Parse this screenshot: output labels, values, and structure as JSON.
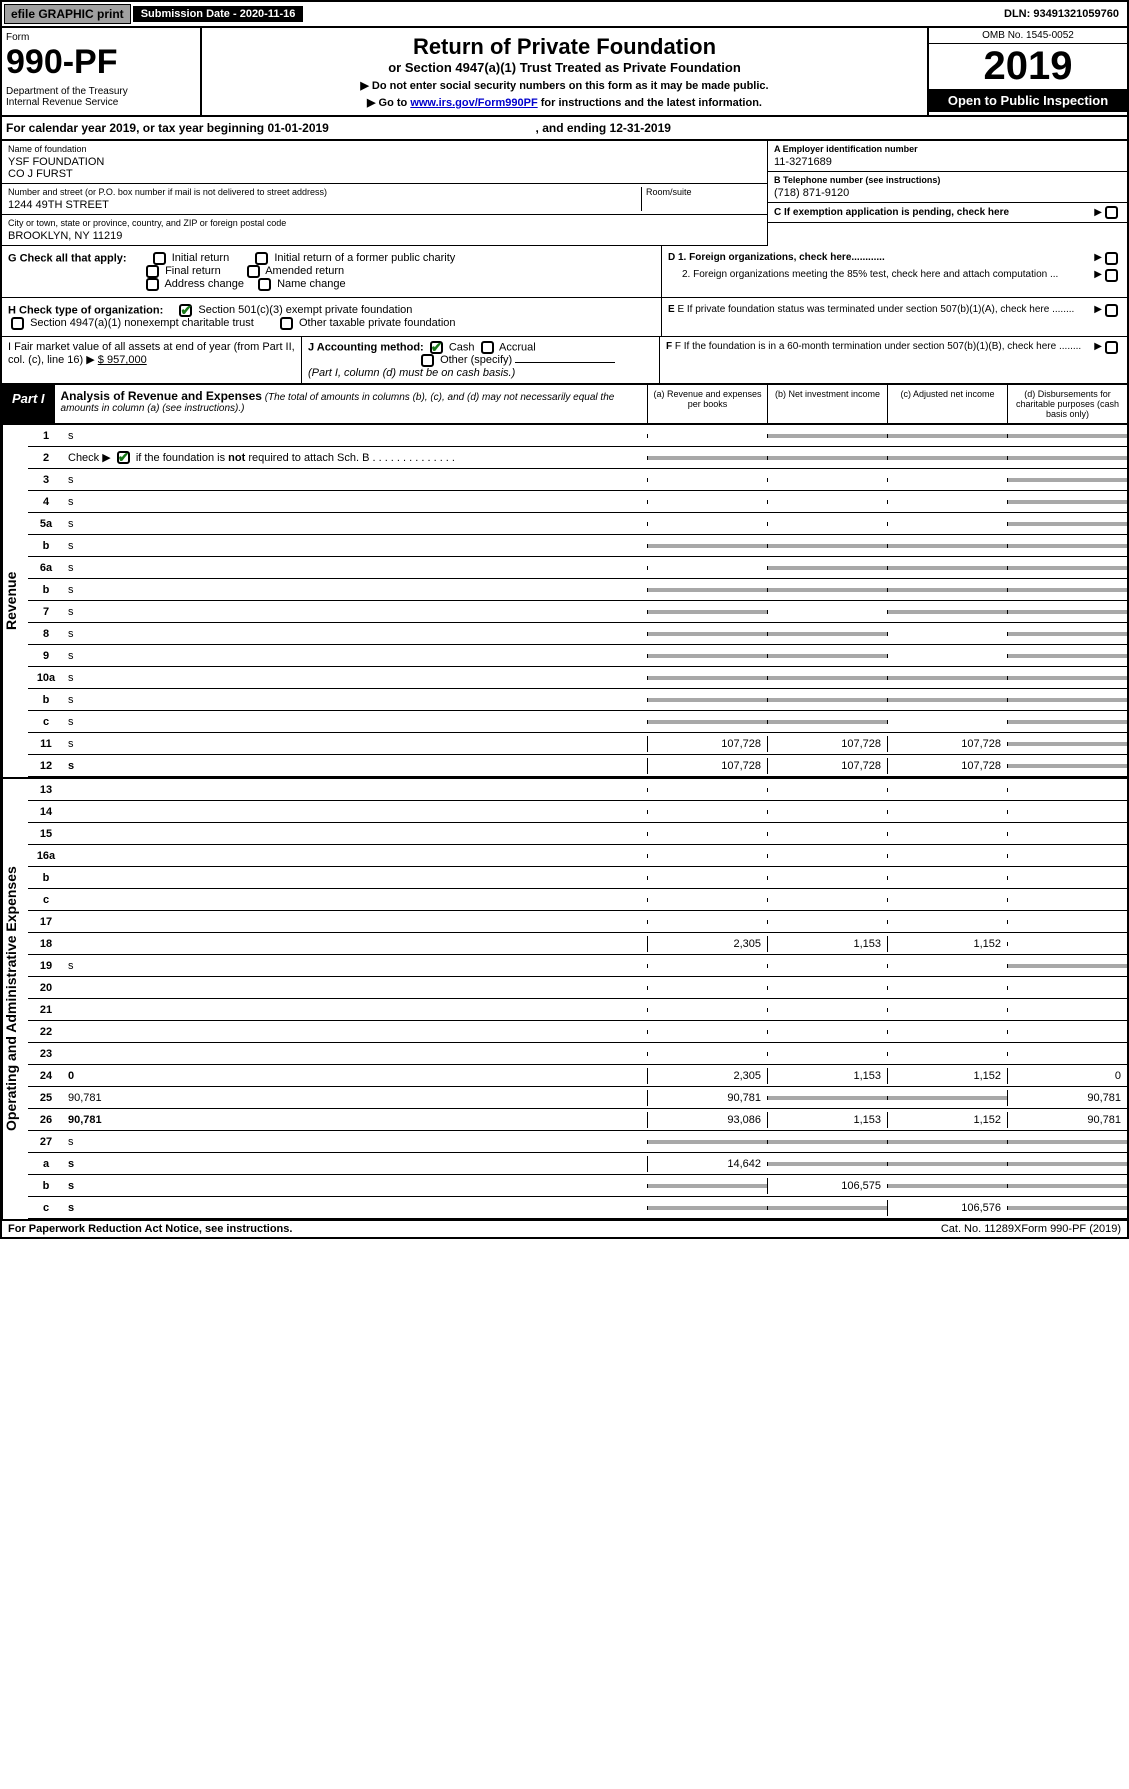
{
  "topbar": {
    "efile": "efile GRAPHIC print",
    "submission": "Submission Date - 2020-11-16",
    "dln": "DLN: 93491321059760"
  },
  "header": {
    "form": "Form",
    "form_num": "990-PF",
    "dept": "Department of the Treasury\nInternal Revenue Service",
    "title": "Return of Private Foundation",
    "subtitle": "or Section 4947(a)(1) Trust Treated as Private Foundation",
    "note1": "▶ Do not enter social security numbers on this form as it may be made public.",
    "note2_pre": "▶ Go to ",
    "note2_link": "www.irs.gov/Form990PF",
    "note2_post": " for instructions and the latest information.",
    "omb": "OMB No. 1545-0052",
    "year": "2019",
    "open": "Open to Public Inspection"
  },
  "calyear": {
    "text_pre": "For calendar year 2019, or tax year beginning ",
    "begin": "01-01-2019",
    "text_mid": " , and ending ",
    "end": "12-31-2019"
  },
  "info": {
    "name_lbl": "Name of foundation",
    "name_val": "YSF FOUNDATION\nCO J FURST",
    "addr_lbl": "Number and street (or P.O. box number if mail is not delivered to street address)",
    "addr_val": "1244 49TH STREET",
    "room_lbl": "Room/suite",
    "city_lbl": "City or town, state or province, country, and ZIP or foreign postal code",
    "city_val": "BROOKLYN, NY  11219",
    "a_lbl": "A Employer identification number",
    "a_val": "11-3271689",
    "b_lbl": "B Telephone number (see instructions)",
    "b_val": "(718) 871-9120",
    "c_lbl": "C If exemption application is pending, check here"
  },
  "checks": {
    "g_lbl": "G Check all that apply:",
    "g_opts": [
      "Initial return",
      "Initial return of a former public charity",
      "Final return",
      "Amended return",
      "Address change",
      "Name change"
    ],
    "h_lbl": "H Check type of organization:",
    "h_opt1": "Section 501(c)(3) exempt private foundation",
    "h_opt2": "Section 4947(a)(1) nonexempt charitable trust",
    "h_opt3": "Other taxable private foundation",
    "d1": "D 1. Foreign organizations, check here............",
    "d2": "2. Foreign organizations meeting the 85% test, check here and attach computation ...",
    "e": "E If private foundation status was terminated under section 507(b)(1)(A), check here ........"
  },
  "bottom": {
    "i_lbl": "I Fair market value of all assets at end of year (from Part II, col. (c), line 16) ▶",
    "i_val": "$  957,000",
    "j_lbl": "J Accounting method:",
    "j_cash": "Cash",
    "j_accrual": "Accrual",
    "j_other": "Other (specify)",
    "j_note": "(Part I, column (d) must be on cash basis.)",
    "f_lbl": "F  If the foundation is in a 60-month termination under section 507(b)(1)(B), check here ........"
  },
  "part1": {
    "label": "Part I",
    "title": "Analysis of Revenue and Expenses",
    "note": " (The total of amounts in columns (b), (c), and (d) may not necessarily equal the amounts in column (a) (see instructions).)",
    "col_a": "(a) Revenue and expenses per books",
    "col_b": "(b) Net investment income",
    "col_c": "(c) Adjusted net income",
    "col_d": "(d) Disbursements for charitable purposes (cash basis only)"
  },
  "revenue_label": "Revenue",
  "expenses_label": "Operating and Administrative Expenses",
  "rows": [
    {
      "n": "1",
      "d": "s",
      "a": "",
      "b": "s",
      "c": "s"
    },
    {
      "n": "2",
      "d": "s",
      "a": "s",
      "b": "s",
      "c": "s",
      "bold_not": true
    },
    {
      "n": "3",
      "d": "s",
      "a": "",
      "b": "",
      "c": ""
    },
    {
      "n": "4",
      "d": "s",
      "a": "",
      "b": "",
      "c": ""
    },
    {
      "n": "5a",
      "d": "s",
      "a": "",
      "b": "",
      "c": ""
    },
    {
      "n": "b",
      "d": "s",
      "a": "s",
      "b": "s",
      "c": "s"
    },
    {
      "n": "6a",
      "d": "s",
      "a": "",
      "b": "s",
      "c": "s"
    },
    {
      "n": "b",
      "d": "s",
      "a": "s",
      "b": "s",
      "c": "s"
    },
    {
      "n": "7",
      "d": "s",
      "a": "s",
      "b": "",
      "c": "s"
    },
    {
      "n": "8",
      "d": "s",
      "a": "s",
      "b": "s",
      "c": ""
    },
    {
      "n": "9",
      "d": "s",
      "a": "s",
      "b": "s",
      "c": ""
    },
    {
      "n": "10a",
      "d": "s",
      "a": "s",
      "b": "s",
      "c": "s"
    },
    {
      "n": "b",
      "d": "s",
      "a": "s",
      "b": "s",
      "c": "s"
    },
    {
      "n": "c",
      "d": "s",
      "a": "s",
      "b": "s",
      "c": ""
    },
    {
      "n": "11",
      "d": "s",
      "a": "107,728",
      "b": "107,728",
      "c": "107,728"
    },
    {
      "n": "12",
      "d": "s",
      "bold": true,
      "a": "107,728",
      "b": "107,728",
      "c": "107,728"
    }
  ],
  "erows": [
    {
      "n": "13",
      "d": "",
      "a": "",
      "b": "",
      "c": ""
    },
    {
      "n": "14",
      "d": "",
      "a": "",
      "b": "",
      "c": ""
    },
    {
      "n": "15",
      "d": "",
      "a": "",
      "b": "",
      "c": ""
    },
    {
      "n": "16a",
      "d": "",
      "a": "",
      "b": "",
      "c": ""
    },
    {
      "n": "b",
      "d": "",
      "a": "",
      "b": "",
      "c": ""
    },
    {
      "n": "c",
      "d": "",
      "a": "",
      "b": "",
      "c": ""
    },
    {
      "n": "17",
      "d": "",
      "a": "",
      "b": "",
      "c": ""
    },
    {
      "n": "18",
      "d": "",
      "a": "2,305",
      "b": "1,153",
      "c": "1,152"
    },
    {
      "n": "19",
      "d": "s",
      "a": "",
      "b": "",
      "c": ""
    },
    {
      "n": "20",
      "d": "",
      "a": "",
      "b": "",
      "c": ""
    },
    {
      "n": "21",
      "d": "",
      "a": "",
      "b": "",
      "c": ""
    },
    {
      "n": "22",
      "d": "",
      "a": "",
      "b": "",
      "c": ""
    },
    {
      "n": "23",
      "d": "",
      "a": "",
      "b": "",
      "c": ""
    },
    {
      "n": "24",
      "d": "0",
      "bold": true,
      "a": "2,305",
      "b": "1,153",
      "c": "1,152"
    },
    {
      "n": "25",
      "d": "90,781",
      "a": "90,781",
      "b": "s",
      "c": "s"
    },
    {
      "n": "26",
      "d": "90,781",
      "bold": true,
      "a": "93,086",
      "b": "1,153",
      "c": "1,152"
    },
    {
      "n": "27",
      "d": "s",
      "a": "s",
      "b": "s",
      "c": "s"
    },
    {
      "n": "a",
      "d": "s",
      "bold": true,
      "a": "14,642",
      "b": "s",
      "c": "s"
    },
    {
      "n": "b",
      "d": "s",
      "bold": true,
      "a": "s",
      "b": "106,575",
      "c": "s"
    },
    {
      "n": "c",
      "d": "s",
      "bold": true,
      "a": "s",
      "b": "s",
      "c": "106,576"
    }
  ],
  "footer": {
    "left": "For Paperwork Reduction Act Notice, see instructions.",
    "mid": "Cat. No. 11289X",
    "right": "Form 990-PF (2019)"
  },
  "colors": {
    "shade": "#a8a8a8",
    "black": "#000000",
    "link": "#0000cc",
    "check_green": "#1a7a1a"
  }
}
